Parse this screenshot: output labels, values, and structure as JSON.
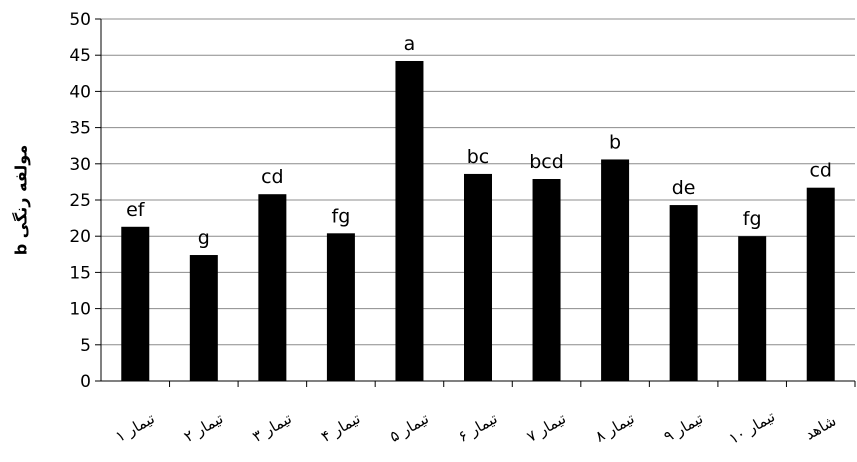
{
  "chart_data": {
    "type": "bar",
    "ylabel": "مولفه رنگی b",
    "ylim": [
      0,
      50
    ],
    "yticks": [
      0,
      5,
      10,
      15,
      20,
      25,
      30,
      35,
      40,
      45,
      50
    ],
    "grid": true,
    "bar_color": "#000000",
    "categories": [
      "تیمار ۱",
      "تیمار ۲",
      "تیمار ۳",
      "تیمار ۴",
      "تیمار ۵",
      "تیمار ۶",
      "تیمار ۷",
      "تیمار ۸",
      "تیمار ۹",
      "تیمار ۱۰",
      "شاهد"
    ],
    "values": [
      21.3,
      17.4,
      25.8,
      20.4,
      44.2,
      28.6,
      27.9,
      30.6,
      24.3,
      20.0,
      26.7
    ],
    "labels": [
      "ef",
      "g",
      "cd",
      "fg",
      "a",
      "bc",
      "bcd",
      "b",
      "de",
      "fg",
      "cd"
    ]
  }
}
